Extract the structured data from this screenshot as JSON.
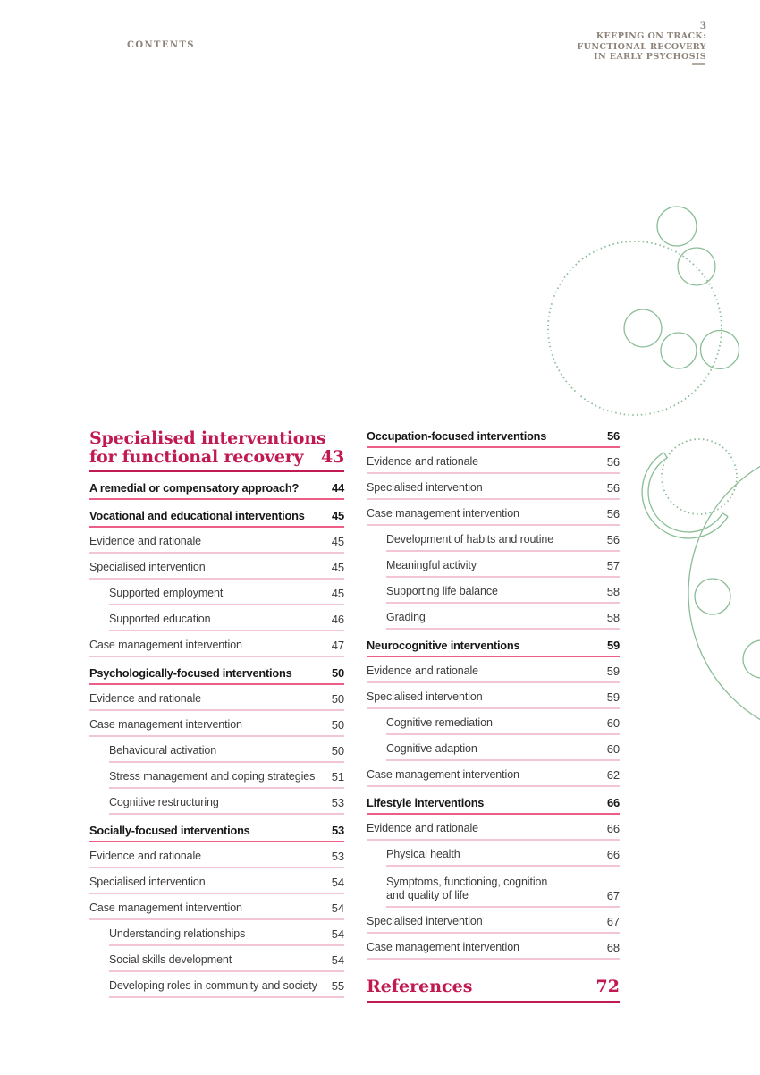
{
  "page_header": {
    "section_label": "CONTENTS",
    "page_number": "3",
    "doc_title_lines": [
      "KEEPING ON TRACK:",
      "FUNCTIONAL RECOVERY",
      "IN EARLY PSYCHOSIS"
    ]
  },
  "toc": {
    "left_column": {
      "chapter": {
        "title_line1": "Specialised interventions",
        "title_line2": "for functional recovery",
        "page": "43"
      },
      "entries": [
        {
          "label": "A remedial or compensatory approach?",
          "page": "44",
          "level": "section"
        },
        {
          "label": "Vocational and educational interventions",
          "page": "45",
          "level": "section"
        },
        {
          "label": "Evidence and rationale",
          "page": "45",
          "level": "item"
        },
        {
          "label": "Specialised intervention",
          "page": "45",
          "level": "item"
        },
        {
          "label": "Supported employment",
          "page": "45",
          "level": "subitem"
        },
        {
          "label": "Supported education",
          "page": "46",
          "level": "subitem"
        },
        {
          "label": "Case management intervention",
          "page": "47",
          "level": "item"
        },
        {
          "label": "Psychologically-focused interventions",
          "page": "50",
          "level": "section"
        },
        {
          "label": "Evidence and rationale",
          "page": "50",
          "level": "item"
        },
        {
          "label": "Case management intervention",
          "page": "50",
          "level": "item"
        },
        {
          "label": "Behavioural activation",
          "page": "50",
          "level": "subitem"
        },
        {
          "label": "Stress management and coping strategies",
          "page": "51",
          "level": "subitem"
        },
        {
          "label": "Cognitive restructuring",
          "page": "53",
          "level": "subitem"
        },
        {
          "label": "Socially-focused interventions",
          "page": "53",
          "level": "section"
        },
        {
          "label": "Evidence and rationale",
          "page": "53",
          "level": "item"
        },
        {
          "label": "Specialised intervention",
          "page": "54",
          "level": "item"
        },
        {
          "label": "Case management intervention",
          "page": "54",
          "level": "item"
        },
        {
          "label": "Understanding relationships",
          "page": "54",
          "level": "subitem"
        },
        {
          "label": "Social skills development",
          "page": "54",
          "level": "subitem"
        },
        {
          "label": "Developing roles in community and society",
          "page": "55",
          "level": "subitem"
        }
      ]
    },
    "right_column": {
      "entries": [
        {
          "label": "Occupation-focused interventions",
          "page": "56",
          "level": "section"
        },
        {
          "label": "Evidence and rationale",
          "page": "56",
          "level": "item"
        },
        {
          "label": "Specialised intervention",
          "page": "56",
          "level": "item"
        },
        {
          "label": "Case management intervention",
          "page": "56",
          "level": "item"
        },
        {
          "label": "Development of habits and routine",
          "page": "56",
          "level": "subitem"
        },
        {
          "label": "Meaningful activity",
          "page": "57",
          "level": "subitem"
        },
        {
          "label": "Supporting life balance",
          "page": "58",
          "level": "subitem"
        },
        {
          "label": "Grading",
          "page": "58",
          "level": "subitem"
        },
        {
          "label": "Neurocognitive interventions",
          "page": "59",
          "level": "section"
        },
        {
          "label": "Evidence and rationale",
          "page": "59",
          "level": "item"
        },
        {
          "label": "Specialised intervention",
          "page": "59",
          "level": "item"
        },
        {
          "label": "Cognitive remediation",
          "page": "60",
          "level": "subitem"
        },
        {
          "label": "Cognitive adaption",
          "page": "60",
          "level": "subitem"
        },
        {
          "label": "Case management intervention",
          "page": "62",
          "level": "item"
        },
        {
          "label": "Lifestyle interventions",
          "page": "66",
          "level": "section"
        },
        {
          "label": "Evidence and rationale",
          "page": "66",
          "level": "item"
        },
        {
          "label": "Physical health",
          "page": "66",
          "level": "subitem"
        },
        {
          "label": "Symptoms, functioning, cognition\nand quality of life",
          "page": "67",
          "level": "subitem"
        },
        {
          "label": "Specialised intervention",
          "page": "67",
          "level": "item"
        },
        {
          "label": "Case management intervention",
          "page": "68",
          "level": "item"
        }
      ],
      "references": {
        "label": "References",
        "page": "72"
      }
    }
  },
  "colors": {
    "crimson": "#C11A51",
    "pink_strong": "#EC5E86",
    "pink_light": "#F2C6D7",
    "green": "#8ABD96",
    "header_brown": "#8C8278",
    "text": "#3C3C3C"
  }
}
